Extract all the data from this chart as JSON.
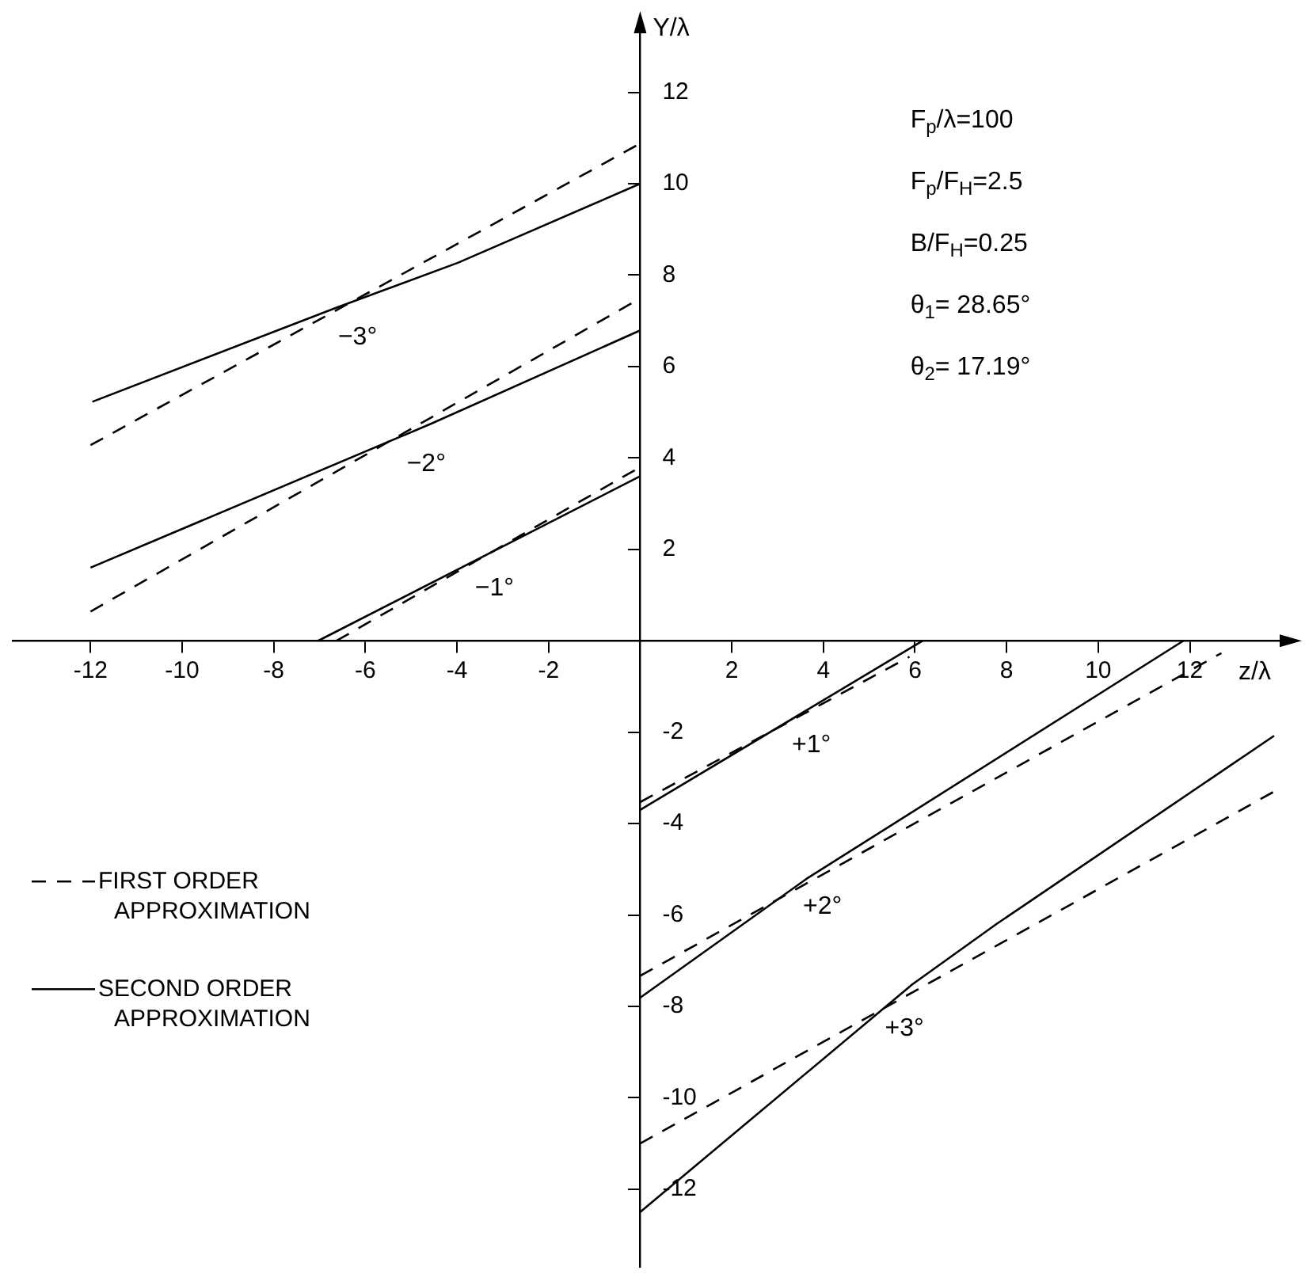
{
  "chart_data": {
    "type": "line",
    "xlabel": "z/λ",
    "ylabel": "Y/λ",
    "xlim": [
      -13.7,
      14.1
    ],
    "ylim": [
      -13.7,
      13.5
    ],
    "xticks": [
      -12,
      -10,
      -8,
      -6,
      -4,
      -2,
      2,
      4,
      6,
      8,
      10,
      12
    ],
    "yticks": [
      -12,
      -10,
      -8,
      -6,
      -4,
      -2,
      2,
      4,
      6,
      8,
      10,
      12
    ],
    "grid": false,
    "legend": "left",
    "series": [
      {
        "name": "FIRST ORDER APPROXIMATION",
        "color": "#000000",
        "line_style": "dashed",
        "x": [
          -12,
          0
        ],
        "values": [
          4.28,
          10.88
        ]
      },
      {
        "name": "SECOND ORDER APPROXIMATION",
        "color": "#000000",
        "line_style": "solid",
        "x": [
          -11.96,
          -6.63,
          -3.98,
          0
        ],
        "values": [
          5.23,
          7.29,
          8.27,
          10.0
        ]
      },
      {
        "color": "#000000",
        "line_style": "dashed",
        "x": [
          -12,
          0
        ],
        "values": [
          0.64,
          7.49
        ]
      },
      {
        "color": "#000000",
        "line_style": "solid",
        "x": [
          -12,
          -4.56,
          0
        ],
        "values": [
          1.6,
          4.75,
          6.79
        ]
      },
      {
        "color": "#000000",
        "line_style": "dashed",
        "x": [
          -6.63,
          0
        ],
        "values": [
          0,
          3.8
        ]
      },
      {
        "color": "#000000",
        "line_style": "solid",
        "x": [
          -7.03,
          0
        ],
        "values": [
          0,
          3.6
        ]
      },
      {
        "color": "#000000",
        "line_style": "dashed",
        "x": [
          0,
          5.88
        ],
        "values": [
          -3.53,
          -0.35
        ]
      },
      {
        "color": "#000000",
        "line_style": "solid",
        "x": [
          0,
          6.17
        ],
        "values": [
          -3.7,
          0
        ]
      },
      {
        "color": "#000000",
        "line_style": "dashed",
        "x": [
          0,
          12.69
        ],
        "values": [
          -7.33,
          -0.27
        ]
      },
      {
        "color": "#000000",
        "line_style": "solid",
        "x": [
          0,
          3.63,
          11.86
        ],
        "values": [
          -7.81,
          -5.21,
          0
        ]
      },
      {
        "color": "#000000",
        "line_style": "dashed",
        "x": [
          0,
          13.84
        ],
        "values": [
          -11.0,
          -3.3
        ]
      },
      {
        "color": "#000000",
        "line_style": "solid",
        "x": [
          0,
          5.94,
          7.79,
          13.84
        ],
        "values": [
          -12.5,
          -7.52,
          -6.19,
          -2.08
        ]
      }
    ],
    "annotations": [
      "F$_{p}$/λ=100",
      "F$_{p}$/F$_{H}$=2.5",
      "B/F$_{H}$=0.25",
      "θ$_{1}$= 28.65°",
      "θ$_{2}$= 17.19°",
      {
        "text": "−3°",
        "x": -6.17,
        "y": 7.46
      },
      {
        "text": "−2°",
        "x": -4.67,
        "y": 4.7
      },
      {
        "text": "−1°",
        "x": -3.18,
        "y": 1.97
      },
      {
        "text": "+1°",
        "x": 3.74,
        "y": -1.46
      },
      {
        "text": "+2°",
        "x": 3.98,
        "y": -4.99
      },
      {
        "text": "+3°",
        "x": 5.77,
        "y": -7.66
      }
    ]
  }
}
